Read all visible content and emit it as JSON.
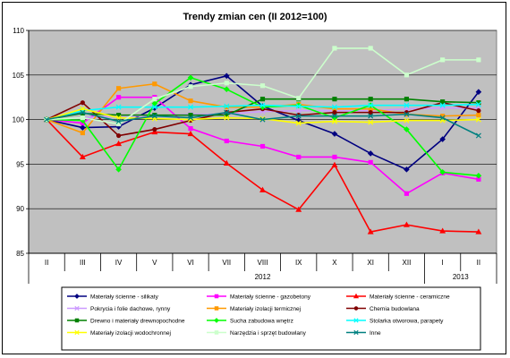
{
  "chart_data": {
    "type": "line",
    "title": "Trendy zmian cen (II 2012=100)",
    "categories": [
      "II",
      "III",
      "IV",
      "V",
      "VI",
      "VII",
      "VIII",
      "IX",
      "X",
      "XI",
      "XII",
      "I",
      "II"
    ],
    "year_labels": [
      "2012",
      "2013"
    ],
    "ylim": [
      85,
      110
    ],
    "yticks": [
      85,
      90,
      95,
      100,
      105,
      110
    ],
    "plot_bg": "#c0c0c0",
    "grid": true,
    "legend_position": "bottom",
    "series": [
      {
        "name": "Materiały ścienne - silikaty",
        "color": "#000080",
        "marker": "diamond",
        "values": [
          100,
          99.1,
          99.2,
          101.3,
          103.9,
          104.9,
          101.5,
          99.9,
          98.4,
          96.2,
          94.4,
          97.8,
          103.1
        ]
      },
      {
        "name": "Materiały ścienne - gazobetony",
        "color": "#ff00ff",
        "marker": "square",
        "values": [
          100,
          99.6,
          102.5,
          102.5,
          99.0,
          97.6,
          97.0,
          95.8,
          95.8,
          95.2,
          91.7,
          94.0,
          93.3
        ]
      },
      {
        "name": "Materiały ścienne - ceramiczne",
        "color": "#ff0000",
        "marker": "triangle",
        "values": [
          100,
          95.8,
          97.3,
          98.6,
          98.4,
          95.1,
          92.1,
          89.9,
          94.9,
          87.4,
          88.2,
          87.5,
          87.4
        ]
      },
      {
        "name": "Pokrycia i folie dachowe, rynny",
        "color": "#cc99ff",
        "marker": "x",
        "values": [
          100,
          100.2,
          100.4,
          100.4,
          100.6,
          100.6,
          100.9,
          101.0,
          101.0,
          101.0,
          101.2,
          101.3,
          101.3
        ]
      },
      {
        "name": "Materiały izolacji termicznej",
        "color": "#ff9900",
        "marker": "square",
        "values": [
          100,
          98.5,
          103.5,
          104.0,
          102.1,
          101.4,
          101.4,
          101.7,
          101.2,
          101.2,
          100.6,
          100.4,
          100.5
        ]
      },
      {
        "name": "Chemia budowlana",
        "color": "#800000",
        "marker": "circle",
        "values": [
          100,
          101.9,
          98.2,
          98.9,
          99.9,
          100.8,
          101.2,
          100.5,
          100.8,
          100.8,
          100.8,
          101.9,
          101.0
        ]
      },
      {
        "name": "Drewno i materiały drewnopochodne",
        "color": "#008000",
        "marker": "square",
        "values": [
          100,
          100.7,
          100.5,
          100.5,
          100.5,
          100.5,
          102.3,
          102.3,
          102.3,
          102.3,
          102.3,
          102.0,
          101.9
        ]
      },
      {
        "name": "Sucha zabudowa wnętrz",
        "color": "#00ff00",
        "marker": "diamond",
        "values": [
          100,
          99.9,
          94.4,
          101.8,
          104.7,
          103.4,
          101.4,
          101.6,
          100.2,
          101.6,
          98.9,
          94.1,
          93.7
        ]
      },
      {
        "name": "Stolarka otworowa, parapety",
        "color": "#00ffff",
        "marker": "x",
        "values": [
          100,
          101.0,
          101.4,
          101.4,
          101.4,
          101.5,
          101.6,
          101.5,
          101.4,
          101.6,
          101.6,
          101.6,
          101.7
        ]
      },
      {
        "name": "Materiały izolacji wodochronnej",
        "color": "#ffff00",
        "marker": "x",
        "values": [
          100,
          101.2,
          100.2,
          100.1,
          100.0,
          100.2,
          100.1,
          99.6,
          99.8,
          99.7,
          99.9,
          99.9,
          100.0
        ]
      },
      {
        "name": "Narzędzia i sprzęt budowlany",
        "color": "#ccffcc",
        "marker": "square",
        "values": [
          100,
          100.2,
          99.5,
          102.3,
          103.7,
          104.1,
          103.8,
          102.4,
          108.0,
          108.0,
          105.0,
          106.7,
          106.7
        ]
      },
      {
        "name": "Inne",
        "color": "#008080",
        "marker": "x",
        "values": [
          100,
          100.8,
          99.8,
          100.4,
          100.2,
          100.8,
          100.0,
          100.4,
          100.4,
          100.4,
          100.6,
          100.2,
          98.2
        ]
      }
    ]
  }
}
